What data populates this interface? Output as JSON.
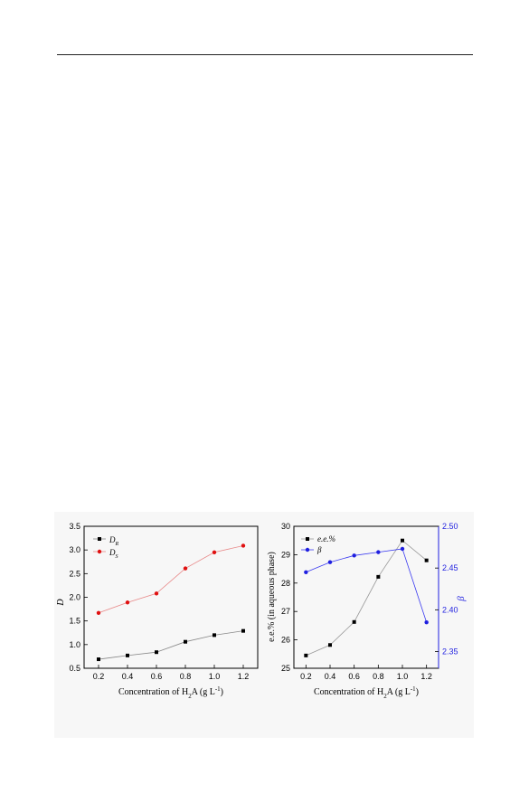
{
  "chart_data": [
    {
      "type": "line",
      "x": [
        0.2,
        0.4,
        0.6,
        0.8,
        1.0,
        1.2
      ],
      "xlabel_main": "Concentration of H",
      "xlabel_sub": "2",
      "xlabel_mid": "A (g L",
      "xlabel_sup": "-1",
      "xlabel_end": ")",
      "ylabel": "D",
      "xlim": [
        0.1,
        1.3
      ],
      "ylim": [
        0.5,
        3.5
      ],
      "xticks": [
        "0.2",
        "0.4",
        "0.6",
        "0.8",
        "1.0",
        "1.2"
      ],
      "yticks": [
        "0.5",
        "1.0",
        "1.5",
        "2.0",
        "2.5",
        "3.0",
        "3.5"
      ],
      "legend_position": "top-left",
      "series": [
        {
          "name_main": "D",
          "name_sub": "R",
          "marker": "square",
          "color": "#000000",
          "line_color": "#888888",
          "values": [
            0.69,
            0.77,
            0.84,
            1.06,
            1.2,
            1.29
          ]
        },
        {
          "name_main": "D",
          "name_sub": "S",
          "marker": "circle",
          "color": "#e01010",
          "line_color": "#e88888",
          "values": [
            1.67,
            1.89,
            2.08,
            2.61,
            2.95,
            3.09
          ]
        }
      ]
    },
    {
      "type": "line",
      "x": [
        0.2,
        0.4,
        0.6,
        0.8,
        1.0,
        1.2
      ],
      "xlabel_main": "Concentration of H",
      "xlabel_sub": "2",
      "xlabel_mid": "A (g L",
      "xlabel_sup": "-1",
      "xlabel_end": ")",
      "ylabel_left": "e.e.% (in aqueous phase)",
      "ylabel_right": "β",
      "xlim": [
        0.1,
        1.3
      ],
      "ylim_left": [
        25,
        30
      ],
      "ylim_right": [
        2.33,
        2.5
      ],
      "xticks": [
        "0.2",
        "0.4",
        "0.6",
        "0.8",
        "1.0",
        "1.2"
      ],
      "yticks_left": [
        "25",
        "26",
        "27",
        "28",
        "29",
        "30"
      ],
      "yticks_right": [
        "2.35",
        "2.40",
        "2.45",
        "2.50"
      ],
      "legend_position": "top-left",
      "series": [
        {
          "name": "e.e.%",
          "axis": "left",
          "marker": "square",
          "color": "#000000",
          "line_color": "#999999",
          "values": [
            25.45,
            25.82,
            26.63,
            28.22,
            29.5,
            28.8
          ]
        },
        {
          "name": "β",
          "axis": "right",
          "marker": "circle",
          "color": "#1f1fe0",
          "line_color": "#3a3af0",
          "values": [
            2.445,
            2.457,
            2.465,
            2.469,
            2.473,
            2.385
          ]
        }
      ]
    }
  ]
}
